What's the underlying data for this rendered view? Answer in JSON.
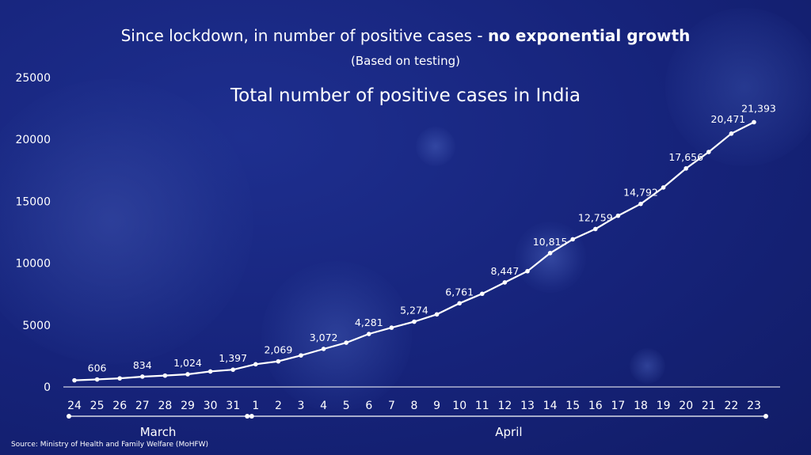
{
  "title_part1": "Since lockdown, in number of positive cases - ",
  "title_part2": "no exponential growth",
  "subtitle": "(Based on testing)",
  "source": "Source: Ministry of Health and Family Welfare (MoHFW)",
  "chart_data": {
    "type": "line",
    "title": "Total number of positive cases in India",
    "x": [
      "24",
      "25",
      "26",
      "27",
      "28",
      "29",
      "30",
      "31",
      "1",
      "2",
      "3",
      "4",
      "5",
      "6",
      "7",
      "8",
      "9",
      "10",
      "11",
      "12",
      "13",
      "14",
      "15",
      "16",
      "17",
      "18",
      "19",
      "20",
      "21",
      "22",
      "23"
    ],
    "months": [
      {
        "label": "March",
        "from": 0,
        "to": 7
      },
      {
        "label": "April",
        "from": 8,
        "to": 30
      }
    ],
    "series": [
      {
        "values": [
          536,
          606,
          694,
          834,
          918,
          1024,
          1251,
          1397,
          1834,
          2069,
          2547,
          3072,
          3577,
          4281,
          4789,
          5274,
          5865,
          6761,
          7529,
          8447,
          9352,
          10815,
          11933,
          12759,
          13835,
          14792,
          16116,
          17656,
          18985,
          20471,
          21393
        ],
        "labels": [
          null,
          "606",
          null,
          "834",
          null,
          "1,024",
          null,
          "1,397",
          null,
          "2,069",
          null,
          "3,072",
          null,
          "4,281",
          null,
          "5,274",
          null,
          "6,761",
          null,
          "8,447",
          null,
          "10,815",
          null,
          "12,759",
          null,
          "14,792",
          null,
          "17,656",
          null,
          "20,471",
          "21,393"
        ]
      }
    ],
    "y_ticks": [
      "0",
      "5000",
      "10000",
      "15000",
      "20000",
      "25000"
    ],
    "ylim": [
      0,
      25000
    ],
    "grid": false,
    "colors": {
      "line": "#ffffff",
      "background": "#16237a",
      "text": "#ffffff"
    }
  }
}
